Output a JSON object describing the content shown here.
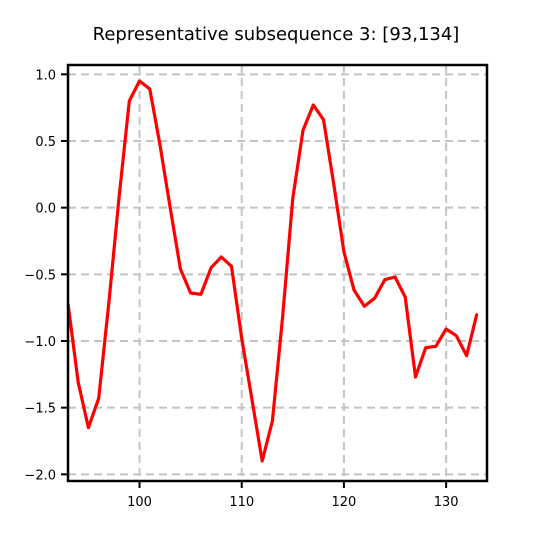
{
  "chart_data": {
    "type": "line",
    "title": "Representative subsequence 3: [93,134]",
    "xlabel": "",
    "ylabel": "",
    "xlim": [
      93,
      134
    ],
    "ylim": [
      -2.05,
      1.07
    ],
    "x_ticks": [
      100,
      110,
      120,
      130
    ],
    "x_tick_labels": [
      "100",
      "110",
      "120",
      "130"
    ],
    "y_ticks": [
      1.0,
      0.5,
      0.0,
      -0.5,
      -1.0,
      -1.5,
      -2.0
    ],
    "y_tick_labels": [
      "1.0",
      "0.5",
      "0.0",
      "−0.5",
      "−1.0",
      "−1.5",
      "−2.0"
    ],
    "grid": true,
    "line_color": "#ff0000",
    "series": [
      {
        "x": [
          93,
          94,
          95,
          96,
          97,
          98,
          99,
          100,
          101,
          102,
          103,
          104,
          105,
          106,
          107,
          108,
          109,
          110,
          111,
          112,
          113,
          114,
          115,
          116,
          117,
          118,
          119,
          120,
          121,
          122,
          123,
          124,
          125,
          126,
          127,
          128,
          129,
          130,
          131,
          132,
          133
        ],
        "values": [
          -0.72,
          -1.31,
          -1.65,
          -1.43,
          -0.71,
          0.08,
          0.8,
          0.95,
          0.89,
          0.47,
          0.0,
          -0.46,
          -0.64,
          -0.65,
          -0.45,
          -0.37,
          -0.44,
          -0.98,
          -1.44,
          -1.9,
          -1.6,
          -0.82,
          0.07,
          0.58,
          0.77,
          0.66,
          0.18,
          -0.33,
          -0.62,
          -0.74,
          -0.68,
          -0.54,
          -0.52,
          -0.67,
          -1.27,
          -1.05,
          -1.04,
          -0.91,
          -0.96,
          -1.11,
          -0.8
        ]
      }
    ]
  }
}
